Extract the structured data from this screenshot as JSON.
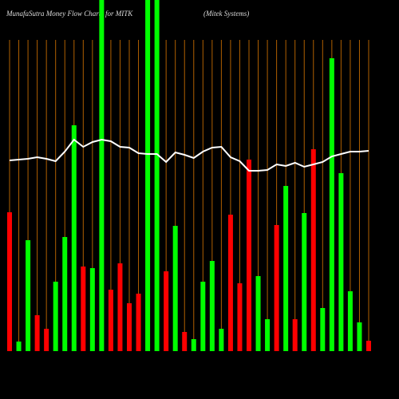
{
  "chart_data": {
    "type": "bar",
    "title": "MunafaSutra  Money Flow  Charts for MITK",
    "subtitle": "(Mitek Systems)",
    "values": [
      174,
      12,
      139,
      45,
      28,
      87,
      143,
      283,
      106,
      104,
      440,
      77,
      110,
      60,
      72,
      440,
      440,
      100,
      157,
      24,
      15,
      87,
      113,
      28,
      171,
      85,
      240,
      94,
      40,
      158,
      207,
      40,
      173,
      253,
      54,
      367,
      223,
      75,
      36,
      13
    ],
    "colors": [
      "#ff0000",
      "#00ff00",
      "#00ff00",
      "#ff0000",
      "#ff0000",
      "#00ff00",
      "#00ff00",
      "#00ff00",
      "#ff0000",
      "#00ff00",
      "#00ff00",
      "#ff0000",
      "#ff0000",
      "#ff0000",
      "#ff0000",
      "#00ff00",
      "#00ff00",
      "#ff0000",
      "#00ff00",
      "#ff0000",
      "#00ff00",
      "#00ff00",
      "#00ff00",
      "#00ff00",
      "#ff0000",
      "#ff0000",
      "#ff0000",
      "#00ff00",
      "#00ff00",
      "#ff0000",
      "#00ff00",
      "#ff0000",
      "#00ff00",
      "#ff0000",
      "#00ff00",
      "#00ff00",
      "#00ff00",
      "#00ff00",
      "#00ff00",
      "#ff0000"
    ],
    "line": {
      "color": "#ffffff",
      "values": [
        239,
        240,
        241,
        243,
        241,
        238,
        250,
        265,
        256,
        262,
        265,
        263,
        256,
        255,
        248,
        247,
        247,
        237,
        249,
        246,
        242,
        250,
        255,
        256,
        243,
        238,
        226,
        226,
        227,
        234,
        232,
        236,
        231,
        234,
        237,
        244,
        247,
        250,
        250,
        251
      ]
    },
    "ylim": [
      0,
      440
    ],
    "grid": true,
    "grid_color": "#b06000"
  }
}
